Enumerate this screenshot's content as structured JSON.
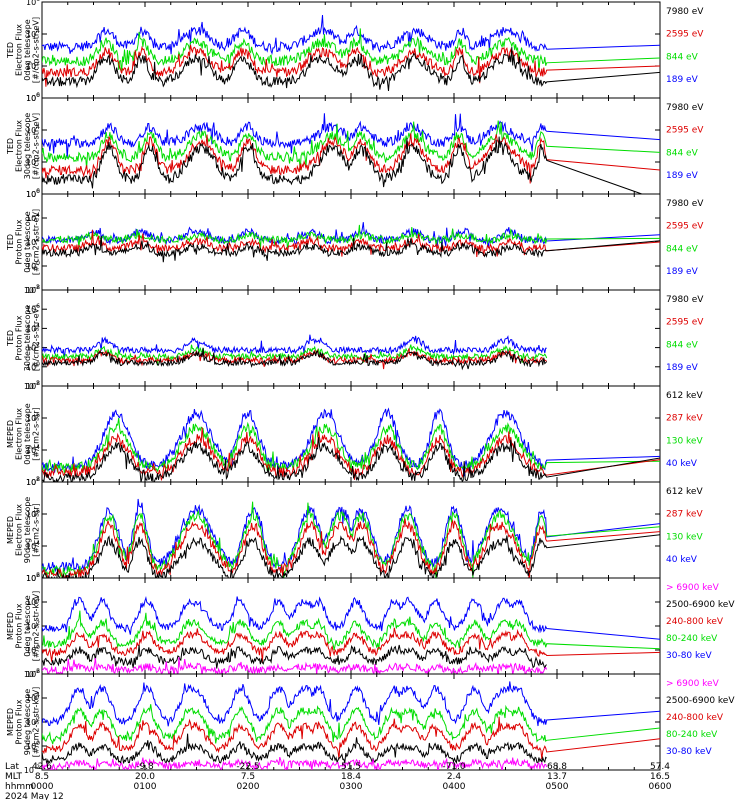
{
  "chart_data": [
    {
      "type": "line",
      "ylabel": [
        "TED",
        "Electron Flux",
        "0deg telescope",
        "[#/cm2-s-str-eV]"
      ],
      "yscale": "log",
      "ylim_exp": [
        0,
        6
      ],
      "tick_exps": [
        0,
        2,
        4,
        6
      ],
      "series": [
        {
          "name": "7980 eV",
          "color": "#000000",
          "shape": "te0",
          "base": 1.0,
          "amp": 1.5,
          "tail": 1.6
        },
        {
          "name": "2595 eV",
          "color": "#dd0000",
          "shape": "te0",
          "base": 1.6,
          "amp": 1.3,
          "tail": 2.0
        },
        {
          "name": "844 eV",
          "color": "#00dd00",
          "shape": "te0",
          "base": 2.3,
          "amp": 1.2,
          "tail": 2.5
        },
        {
          "name": "189 eV",
          "color": "#0000ff",
          "shape": "te0",
          "base": 3.2,
          "amp": 1.0,
          "tail": 3.3
        }
      ]
    },
    {
      "type": "line",
      "ylabel": [
        "TED",
        "Electron Flux",
        "30deg telescope",
        "[#/cm2-s-str-eV]"
      ],
      "yscale": "log",
      "ylim_exp": [
        0,
        6
      ],
      "tick_exps": [
        0,
        2,
        4,
        6
      ],
      "series": [
        {
          "name": "7980 eV",
          "color": "#000000",
          "shape": "te30",
          "base": 0.9,
          "amp": 2.0,
          "tail": -0.4
        },
        {
          "name": "2595 eV",
          "color": "#dd0000",
          "shape": "te30",
          "base": 1.5,
          "amp": 1.8,
          "tail": 1.5
        },
        {
          "name": "844 eV",
          "color": "#00dd00",
          "shape": "te30",
          "base": 2.3,
          "amp": 1.4,
          "tail": 2.6
        },
        {
          "name": "189 eV",
          "color": "#0000ff",
          "shape": "te30",
          "base": 3.2,
          "amp": 1.0,
          "tail": 3.4
        }
      ]
    },
    {
      "type": "line",
      "ylabel": [
        "TED",
        "Proton Flux",
        "0deg telescope",
        "[#/cm2-s-str-eV]"
      ],
      "yscale": "log",
      "ylim_exp": [
        -2,
        6
      ],
      "tick_exps": [
        -2,
        0,
        2,
        4,
        6
      ],
      "series": [
        {
          "name": "7980 eV",
          "color": "#000000",
          "shape": "tp0",
          "base": 0.8,
          "amp": 1.2,
          "tail": 2.1
        },
        {
          "name": "2595 eV",
          "color": "#dd0000",
          "shape": "tp0",
          "base": 1.2,
          "amp": 1.2,
          "tail": 2.0
        },
        {
          "name": "844 eV",
          "color": "#00dd00",
          "shape": "tp0",
          "base": 2.0,
          "amp": 0.8,
          "tail": 2.3
        },
        {
          "name": "189 eV",
          "color": "#0000ff",
          "shape": "tp0",
          "base": 1.8,
          "amp": 1.5,
          "tail": 2.6
        }
      ]
    },
    {
      "type": "line",
      "ylabel": [
        "TED",
        "Proton Flux",
        "30deg telescope",
        "[#/cm2-s-str-eV]"
      ],
      "yscale": "log",
      "ylim_exp": [
        -2,
        8
      ],
      "tick_exps": [
        -2,
        0,
        2,
        4,
        6,
        8
      ],
      "series": [
        {
          "name": "7980 eV",
          "color": "#000000",
          "shape": "tp30",
          "base": 0.2,
          "amp": 1.5,
          "tail": null
        },
        {
          "name": "2595 eV",
          "color": "#dd0000",
          "shape": "tp30",
          "base": 0.5,
          "amp": 1.2,
          "tail": null
        },
        {
          "name": "844 eV",
          "color": "#00dd00",
          "shape": "tp30",
          "base": 0.9,
          "amp": 1.2,
          "tail": null
        },
        {
          "name": "189 eV",
          "color": "#0000ff",
          "shape": "tp30",
          "base": 1.5,
          "amp": 1.6,
          "tail": null
        }
      ]
    },
    {
      "type": "line",
      "ylabel": [
        "MEPED",
        "Electron Flux",
        "0deg telescope",
        "[#/cm2-s-str]"
      ],
      "yscale": "log",
      "ylim_exp": [
        2,
        8
      ],
      "tick_exps": [
        2,
        4,
        6,
        8
      ],
      "series": [
        {
          "name": "612 keV",
          "color": "#000000",
          "shape": "me0",
          "base": 2.3,
          "amp": 1.9,
          "tail": 3.5
        },
        {
          "name": "287 keV",
          "color": "#dd0000",
          "shape": "me0",
          "base": 2.6,
          "amp": 2.1,
          "tail": 3.4
        },
        {
          "name": "130 keV",
          "color": "#00dd00",
          "shape": "me0",
          "base": 2.9,
          "amp": 2.5,
          "tail": 3.3
        },
        {
          "name": "40 keV",
          "color": "#0000ff",
          "shape": "me0",
          "base": 3.0,
          "amp": 3.3,
          "tail": 3.6
        }
      ]
    },
    {
      "type": "line",
      "ylabel": [
        "MEPED",
        "Electron Flux",
        "90deg telescope",
        "[#/cm2-s-str]"
      ],
      "yscale": "log",
      "ylim_exp": [
        2,
        8
      ],
      "tick_exps": [
        2,
        4,
        6,
        8
      ],
      "series": [
        {
          "name": "612 keV",
          "color": "#000000",
          "shape": "me90",
          "base": 2.0,
          "amp": 2.3,
          "tail": 4.7
        },
        {
          "name": "287 keV",
          "color": "#dd0000",
          "shape": "me90",
          "base": 2.3,
          "amp": 3.0,
          "tail": 4.9
        },
        {
          "name": "130 keV",
          "color": "#00dd00",
          "shape": "me90",
          "base": 2.5,
          "amp": 3.4,
          "tail": 5.2
        },
        {
          "name": "40 keV",
          "color": "#0000ff",
          "shape": "me90",
          "base": 2.7,
          "amp": 3.6,
          "tail": 5.4
        }
      ]
    },
    {
      "type": "line",
      "ylabel": [
        "MEPED",
        "Proton Flux",
        "0deg telescope",
        "[#/cm2-s-str-keV]"
      ],
      "yscale": "log",
      "ylim_exp": [
        -2,
        6
      ],
      "tick_exps": [
        -2,
        0,
        2,
        4,
        6
      ],
      "series": [
        {
          "name": "> 6900 keV",
          "color": "#ff00ff",
          "shape": "mp0",
          "base": -1.7,
          "amp": 0.3,
          "tail": null
        },
        {
          "name": "2500-6900 keV",
          "color": "#000000",
          "shape": "mp0",
          "base": -1.0,
          "amp": 1.0,
          "tail": null
        },
        {
          "name": "240-800 keV",
          "color": "#dd0000",
          "shape": "mp0",
          "base": -0.2,
          "amp": 1.5,
          "tail": -0.2
        },
        {
          "name": "80-240 keV",
          "color": "#00dd00",
          "shape": "mp0",
          "base": 0.5,
          "amp": 1.8,
          "tail": 0.1
        },
        {
          "name": "30-80 keV",
          "color": "#0000ff",
          "shape": "mp0",
          "base": 1.8,
          "amp": 2.3,
          "tail": 0.9
        }
      ]
    },
    {
      "type": "line",
      "ylabel": [
        "MEPED",
        "Proton Flux",
        "90deg telescope",
        "[#/cm2-s-str-keV]"
      ],
      "yscale": "log",
      "ylim_exp": [
        -2,
        6
      ],
      "tick_exps": [
        -2,
        0,
        2,
        4,
        6
      ],
      "series": [
        {
          "name": "> 6900 keV",
          "color": "#ff00ff",
          "shape": "mp90",
          "base": -1.7,
          "amp": 0.3,
          "tail": null
        },
        {
          "name": "2500-6900 keV",
          "color": "#000000",
          "shape": "mp90",
          "base": -1.2,
          "amp": 1.2,
          "tail": null
        },
        {
          "name": "240-800 keV",
          "color": "#dd0000",
          "shape": "mp90",
          "base": -0.3,
          "amp": 2.0,
          "tail": 0.6
        },
        {
          "name": "80-240 keV",
          "color": "#00dd00",
          "shape": "mp90",
          "base": 0.6,
          "amp": 2.4,
          "tail": 1.5
        },
        {
          "name": "30-80 keV",
          "color": "#0000ff",
          "shape": "mp90",
          "base": 2.0,
          "amp": 2.8,
          "tail": 2.9
        }
      ]
    }
  ],
  "footer": {
    "row_labels": [
      "Lat",
      "MLT",
      "hhmm",
      "2024 May 12"
    ],
    "ticks": [
      {
        "lat": "42.6",
        "mlt": "8.5",
        "hhmm": "0000"
      },
      {
        "lat": "-9.8",
        "mlt": "20.0",
        "hhmm": "0100"
      },
      {
        "lat": "-22.5",
        "mlt": "7.5",
        "hhmm": "0200"
      },
      {
        "lat": "51.5",
        "mlt": "18.4",
        "hhmm": "0300"
      },
      {
        "lat": "-71.0",
        "mlt": "2.4",
        "hhmm": "0400"
      },
      {
        "lat": "68.8",
        "mlt": "13.7",
        "hhmm": "0500"
      },
      {
        "lat": "57.4",
        "mlt": "16.5",
        "hhmm": "0600"
      }
    ],
    "time_range_hours": [
      0,
      6
    ],
    "data_end_hours": 4.9
  }
}
